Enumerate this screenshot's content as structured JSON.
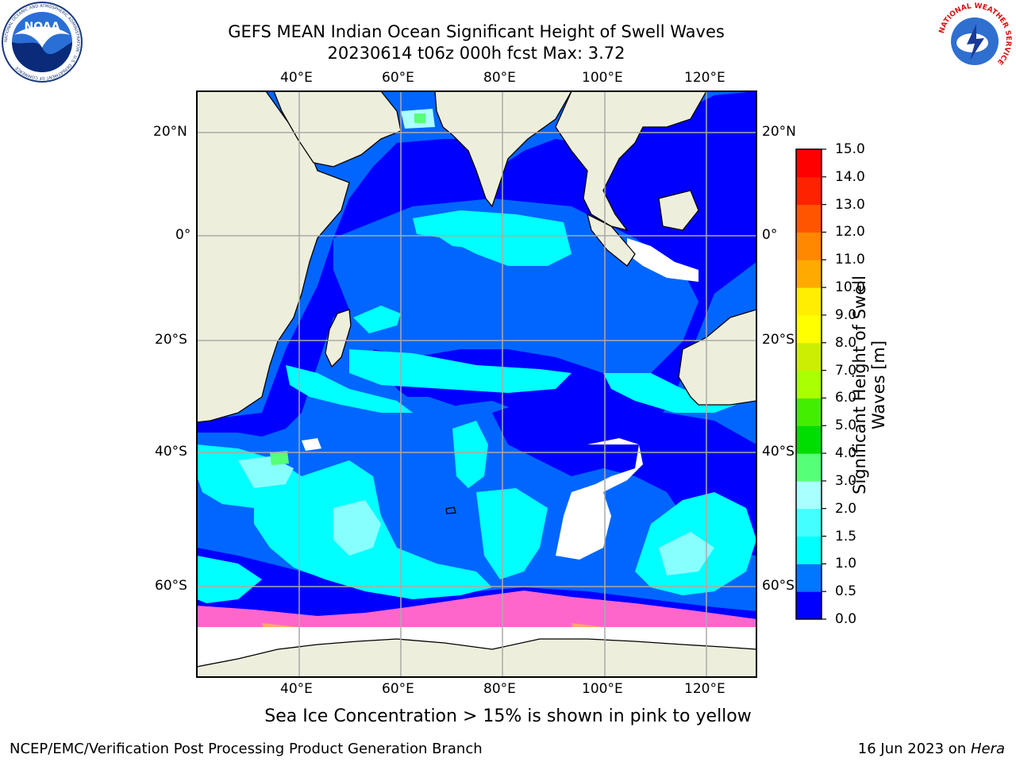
{
  "header": {
    "title_line1": "GEFS MEAN Indian Ocean Significant Height of Swell Waves",
    "title_line2": "20230614 t06z 000h fcst   Max: 3.72"
  },
  "map": {
    "lon_labels": [
      "40°E",
      "60°E",
      "80°E",
      "100°E",
      "120°E"
    ],
    "lat_labels": [
      "20°N",
      "0°",
      "20°S",
      "40°S",
      "60°S"
    ],
    "land_color": "#eeeedd",
    "ocean_color": "#0066ff"
  },
  "colorbar": {
    "title": "Significant Height of Swell Waves [m]",
    "ticks": [
      "0.0",
      "0.5",
      "1.0",
      "1.5",
      "2.0",
      "3.0",
      "4.0",
      "5.0",
      "6.0",
      "7.0",
      "8.0",
      "9.0",
      "10.0",
      "11.0",
      "12.0",
      "13.0",
      "14.0",
      "15.0"
    ],
    "colors": [
      "#0000ff",
      "#0077ff",
      "#00ffff",
      "#44ffff",
      "#88ffff",
      "#aaffff",
      "#55ff77",
      "#00dd00",
      "#44ee00",
      "#aaff00",
      "#ccee00",
      "#ffff00",
      "#ffee00",
      "#ffcc00",
      "#ffaa00",
      "#ff8800",
      "#ff5500",
      "#ff2200",
      "#ff0000"
    ]
  },
  "caption": "Sea Ice Concentration > 15% is shown in pink to yellow",
  "footer": {
    "left": "NCEP/EMC/Verification Post Processing Product Generation Branch",
    "right_date": "16 Jun 2023 on ",
    "right_host": "Hera"
  },
  "logos": {
    "noaa_text": "NOAA",
    "noaa_ring_text": "NATIONAL OCEANIC AND ATMOSPHERIC ADMINISTRATION · U.S. DEPARTMENT OF COMMERCE",
    "nws_ring_text": "NATIONAL WEATHER SERVICE"
  }
}
